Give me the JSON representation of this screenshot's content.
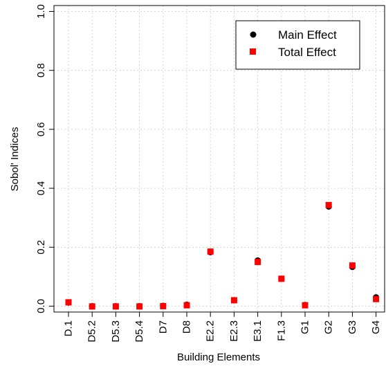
{
  "chart_data": {
    "type": "scatter",
    "title": "",
    "xlabel": "Building Elements",
    "ylabel": "Sobol' Indices",
    "ylim": [
      -0.02,
      1.02
    ],
    "yticks": [
      "0.0",
      "0.2",
      "0.4",
      "0.6",
      "0.8",
      "1.0"
    ],
    "grid": true,
    "legend_position": "top-right",
    "categories": [
      "D.1",
      "D5.2",
      "D5.3",
      "D5.4",
      "D7",
      "D8",
      "E2.2",
      "E2.3",
      "E3.1",
      "F1.3",
      "G1",
      "G2",
      "G3",
      "G4"
    ],
    "series": [
      {
        "name": "Main Effect",
        "marker": "circle",
        "color": "#000000",
        "values": [
          0.012,
          0.0,
          0.0,
          0.0,
          0.001,
          0.005,
          0.183,
          0.02,
          0.155,
          0.093,
          0.004,
          0.338,
          0.133,
          0.03
        ]
      },
      {
        "name": "Total Effect",
        "marker": "square",
        "color": "#ff0000",
        "values": [
          0.013,
          -0.001,
          -0.001,
          -0.001,
          0.0,
          0.003,
          0.185,
          0.02,
          0.15,
          0.093,
          0.003,
          0.343,
          0.138,
          0.024
        ]
      }
    ]
  }
}
